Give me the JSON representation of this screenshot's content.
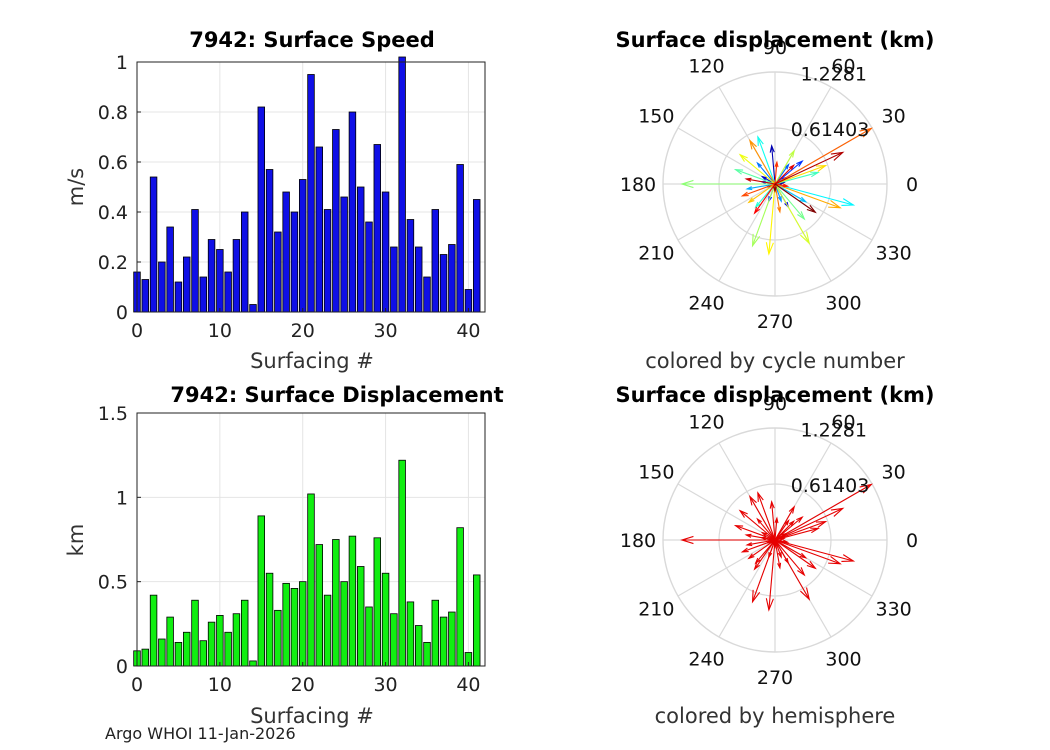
{
  "footer": "Argo WHOI 11-Jan-2026",
  "colors": {
    "speed_bar": "#0f0fe6",
    "disp_bar": "#11ee11",
    "hemisphere_arrow": "#e60000",
    "polar_grid": "#d9d9d9"
  },
  "chart_data": [
    {
      "type": "bar",
      "title": "7942: Surface Speed",
      "xlabel": "Surfacing #",
      "ylabel": "m/s",
      "xlim": [
        0,
        42
      ],
      "ylim": [
        0,
        1
      ],
      "xticks": [
        "0",
        "10",
        "20",
        "30",
        "40"
      ],
      "yticks": [
        "0",
        "0.2",
        "0.4",
        "0.6",
        "0.8",
        "1"
      ],
      "categories": [
        0,
        1,
        2,
        3,
        4,
        5,
        6,
        7,
        8,
        9,
        10,
        11,
        12,
        13,
        14,
        15,
        16,
        17,
        18,
        19,
        20,
        21,
        22,
        23,
        24,
        25,
        26,
        27,
        28,
        29,
        30,
        31,
        32,
        33,
        34,
        35,
        36,
        37,
        38,
        39,
        40,
        41
      ],
      "values": [
        0.16,
        0.13,
        0.54,
        0.2,
        0.34,
        0.12,
        0.22,
        0.41,
        0.14,
        0.29,
        0.25,
        0.16,
        0.29,
        0.4,
        0.03,
        0.82,
        0.57,
        0.32,
        0.48,
        0.4,
        0.53,
        0.95,
        0.66,
        0.41,
        0.73,
        0.46,
        0.8,
        0.5,
        0.36,
        0.67,
        0.48,
        0.26,
        1.02,
        0.37,
        0.26,
        0.14,
        0.41,
        0.23,
        0.27,
        0.59,
        0.09,
        0.45
      ]
    },
    {
      "type": "bar",
      "title": "7942: Surface Displacement",
      "xlabel": "Surfacing #",
      "ylabel": "km",
      "xlim": [
        0,
        42
      ],
      "ylim": [
        0,
        1.5
      ],
      "xticks": [
        "0",
        "10",
        "20",
        "30",
        "40"
      ],
      "yticks": [
        "0",
        "0.5",
        "1",
        "1.5"
      ],
      "categories": [
        0,
        1,
        2,
        3,
        4,
        5,
        6,
        7,
        8,
        9,
        10,
        11,
        12,
        13,
        14,
        15,
        16,
        17,
        18,
        19,
        20,
        21,
        22,
        23,
        24,
        25,
        26,
        27,
        28,
        29,
        30,
        31,
        32,
        33,
        34,
        35,
        36,
        37,
        38,
        39,
        40,
        41
      ],
      "values": [
        0.09,
        0.1,
        0.42,
        0.16,
        0.29,
        0.14,
        0.2,
        0.39,
        0.15,
        0.26,
        0.3,
        0.2,
        0.31,
        0.39,
        0.03,
        0.89,
        0.55,
        0.33,
        0.49,
        0.46,
        0.5,
        1.02,
        0.72,
        0.42,
        0.75,
        0.5,
        0.77,
        0.59,
        0.35,
        0.76,
        0.55,
        0.31,
        1.22,
        0.38,
        0.24,
        0.14,
        0.39,
        0.29,
        0.32,
        0.82,
        0.08,
        0.54
      ]
    },
    {
      "type": "polar",
      "title": "Surface displacement (km)",
      "xlabel": "colored by cycle number",
      "rmax": 1.2281,
      "ring_labels": [
        "0.61403",
        "1.2281"
      ],
      "angle_labels": [
        "0",
        "30",
        "60",
        "90",
        "120",
        "150",
        "180",
        "210",
        "240",
        "270",
        "300",
        "330"
      ],
      "arrows": [
        {
          "r": 0.09,
          "deg": 200
        },
        {
          "r": 0.1,
          "deg": 10
        },
        {
          "r": 0.42,
          "deg": 95
        },
        {
          "r": 0.16,
          "deg": 150
        },
        {
          "r": 0.29,
          "deg": 300
        },
        {
          "r": 0.14,
          "deg": 30
        },
        {
          "r": 0.2,
          "deg": 250
        },
        {
          "r": 0.39,
          "deg": 40
        },
        {
          "r": 0.15,
          "deg": 170
        },
        {
          "r": 0.26,
          "deg": 55
        },
        {
          "r": 0.3,
          "deg": 130
        },
        {
          "r": 0.2,
          "deg": 290
        },
        {
          "r": 0.31,
          "deg": 190
        },
        {
          "r": 0.39,
          "deg": 330
        },
        {
          "r": 0.03,
          "deg": 100
        },
        {
          "r": 0.89,
          "deg": 345
        },
        {
          "r": 0.55,
          "deg": 110
        },
        {
          "r": 0.33,
          "deg": 230
        },
        {
          "r": 0.49,
          "deg": 15
        },
        {
          "r": 0.46,
          "deg": 160
        },
        {
          "r": 0.5,
          "deg": 310
        },
        {
          "r": 1.02,
          "deg": 180
        },
        {
          "r": 0.72,
          "deg": 250
        },
        {
          "r": 0.42,
          "deg": 60
        },
        {
          "r": 0.75,
          "deg": 300
        },
        {
          "r": 0.5,
          "deg": 140
        },
        {
          "r": 0.77,
          "deg": 265
        },
        {
          "r": 0.59,
          "deg": 20
        },
        {
          "r": 0.35,
          "deg": 215
        },
        {
          "r": 0.76,
          "deg": 340
        },
        {
          "r": 0.55,
          "deg": 120
        },
        {
          "r": 0.31,
          "deg": 280
        },
        {
          "r": 1.22,
          "deg": 30
        },
        {
          "r": 0.38,
          "deg": 200
        },
        {
          "r": 0.24,
          "deg": 85
        },
        {
          "r": 0.14,
          "deg": 350
        },
        {
          "r": 0.39,
          "deg": 235
        },
        {
          "r": 0.29,
          "deg": 45
        },
        {
          "r": 0.32,
          "deg": 170
        },
        {
          "r": 0.82,
          "deg": 25
        },
        {
          "r": 0.08,
          "deg": 270
        },
        {
          "r": 0.54,
          "deg": 325
        }
      ]
    },
    {
      "type": "polar",
      "title": "Surface displacement (km)",
      "xlabel": "colored by hemisphere",
      "rmax": 1.2281,
      "ring_labels": [
        "0.61403",
        "1.2281"
      ],
      "angle_labels": [
        "0",
        "30",
        "60",
        "90",
        "120",
        "150",
        "180",
        "210",
        "240",
        "270",
        "300",
        "330"
      ],
      "arrows": "same as above"
    }
  ]
}
